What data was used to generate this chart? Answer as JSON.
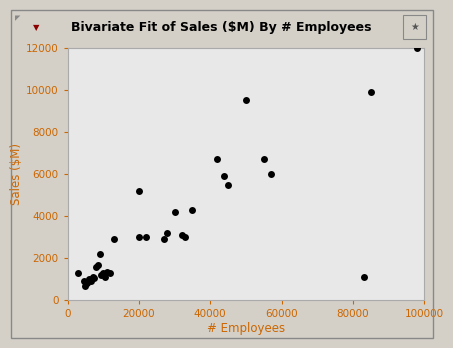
{
  "title": "Bivariate Fit of Sales ($M) By # Employees",
  "xlabel": "# Employees",
  "ylabel": "Sales ($M)",
  "xlim": [
    0,
    100000
  ],
  "ylim": [
    0,
    12000
  ],
  "xticks": [
    0,
    20000,
    40000,
    60000,
    80000,
    100000
  ],
  "yticks": [
    0,
    2000,
    4000,
    6000,
    8000,
    10000,
    12000
  ],
  "dot_color": "#000000",
  "dot_size": 25,
  "fig_bg_color": "#d4d0c8",
  "plot_bg_color": "#e8e8e8",
  "axis_color": "#cc6600",
  "title_bar_color": "#d4d0c8",
  "x": [
    3000,
    4500,
    5000,
    5500,
    6000,
    6500,
    7000,
    7500,
    8000,
    8500,
    9000,
    9500,
    10000,
    10500,
    11000,
    12000,
    13000,
    20000,
    20000,
    22000,
    27000,
    28000,
    30000,
    32000,
    33000,
    35000,
    42000,
    44000,
    45000,
    50000,
    55000,
    57000,
    83000,
    85000,
    98000
  ],
  "y": [
    1300,
    900,
    700,
    800,
    1000,
    900,
    1100,
    1050,
    1600,
    1700,
    2200,
    1200,
    1300,
    1100,
    1350,
    1300,
    2900,
    5200,
    3000,
    3000,
    2900,
    3200,
    4200,
    3100,
    3000,
    4300,
    6700,
    5900,
    5500,
    9500,
    6700,
    6000,
    1100,
    9900,
    12000
  ]
}
